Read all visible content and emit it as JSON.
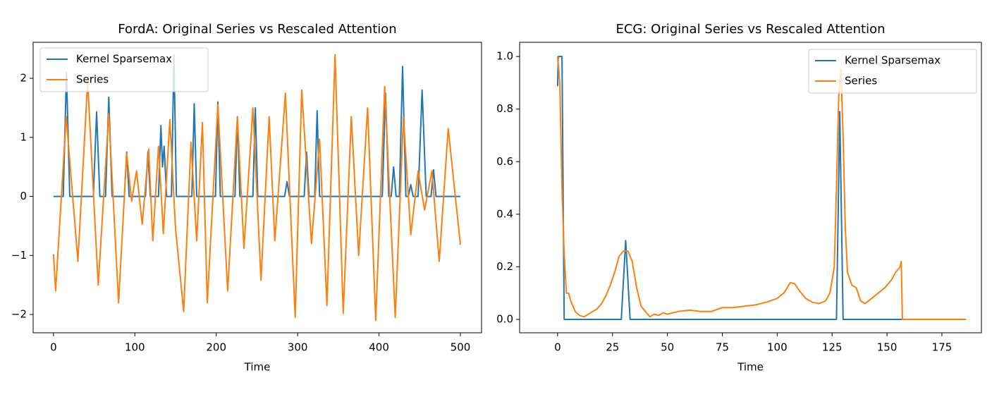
{
  "chart_data": [
    {
      "type": "line",
      "title": "FordA: Original Series vs Rescaled Attention",
      "xlabel": "Time",
      "xlim": [
        -25,
        526
      ],
      "ylim": [
        -2.31,
        2.61
      ],
      "xticks": [
        0,
        100,
        200,
        300,
        400,
        500
      ],
      "yticks": [
        {
          "value": -2,
          "label": "−2"
        },
        {
          "value": -1,
          "label": "−1"
        },
        0,
        1,
        2
      ],
      "legend": "upper-left",
      "series": [
        {
          "name": "Kernel Sparsemax",
          "color": "#1f77b4",
          "x": [
            0,
            12,
            16,
            20,
            49,
            53,
            57,
            64,
            68,
            72,
            87,
            90,
            93,
            113,
            116,
            119,
            129,
            132,
            134,
            136,
            139,
            145,
            148,
            151,
            170,
            173,
            176,
            199,
            202,
            205,
            223,
            226,
            229,
            245,
            248,
            251,
            284,
            287,
            290,
            308,
            311,
            314,
            321,
            324,
            327,
            404,
            408,
            412,
            415,
            418,
            421,
            425,
            429,
            433,
            436,
            439,
            442,
            448,
            453,
            458,
            464,
            467,
            470,
            500
          ],
          "values": [
            0,
            0,
            2.1,
            0,
            0,
            1.43,
            0,
            0,
            1.68,
            0,
            0,
            0.75,
            0,
            0,
            0.75,
            0,
            0,
            1.2,
            0.5,
            0.85,
            0,
            0,
            2.4,
            0,
            0,
            1.57,
            0,
            0,
            1.6,
            0,
            0,
            1.35,
            0,
            0,
            1.5,
            0,
            0,
            0.25,
            0,
            0,
            0.75,
            0,
            0,
            1.45,
            0,
            0,
            1.75,
            0,
            0,
            0.5,
            0,
            0,
            2.2,
            0,
            0,
            0.2,
            0,
            0,
            1.8,
            0,
            0,
            0.45,
            0,
            0
          ]
        },
        {
          "name": "Series",
          "color": "#ff7f0e",
          "x": [
            0,
            2.6,
            15.6,
            30,
            42,
            55,
            68,
            80,
            90,
            96,
            102,
            109,
            117,
            122,
            129,
            135,
            143,
            150,
            160,
            169,
            176,
            183,
            189,
            202,
            214,
            226,
            234,
            245,
            255,
            265,
            272,
            285,
            297,
            305,
            317,
            327,
            336,
            346,
            356,
            366,
            375,
            386,
            396,
            407,
            420,
            430,
            439,
            448,
            456,
            465,
            474,
            485,
            500
          ],
          "values": [
            -0.98,
            -1.6,
            1.35,
            -1.1,
            1.95,
            -1.5,
            1.4,
            -1.8,
            0.73,
            -0.08,
            0.43,
            -0.47,
            0.8,
            -0.75,
            0.85,
            -0.63,
            1.3,
            -0.55,
            -1.95,
            0.92,
            -0.75,
            1.25,
            -1.8,
            1.55,
            -1.6,
            1.35,
            -0.88,
            1.5,
            -1.42,
            1.35,
            -0.75,
            1.75,
            -2.05,
            1.8,
            -0.8,
            0.97,
            -1.85,
            2.4,
            -1.98,
            1.35,
            -1.0,
            1.5,
            -2.1,
            1.86,
            -2.05,
            1.35,
            -0.65,
            0.43,
            -0.23,
            0.43,
            -1.1,
            1.15,
            -0.82
          ]
        }
      ]
    },
    {
      "type": "line",
      "title": "ECG: Original Series vs Rescaled Attention",
      "xlabel": "Time",
      "xlim": [
        -17.3,
        193
      ],
      "ylim": [
        -0.051,
        1.054
      ],
      "xticks": [
        0,
        25,
        50,
        75,
        100,
        125,
        150,
        175
      ],
      "yticks": [
        {
          "value": 0,
          "label": "0.0"
        },
        0.2,
        0.4,
        0.6,
        0.8,
        {
          "value": 1,
          "label": "1.0"
        }
      ],
      "legend": "upper-right",
      "series": [
        {
          "name": "Kernel Sparsemax",
          "color": "#1f77b4",
          "x": [
            0,
            0.3,
            2,
            3,
            29,
            31,
            33,
            127,
            128.5,
            130,
            186
          ],
          "values": [
            0.887,
            1.0,
            1.0,
            0,
            0,
            0.3,
            0,
            0,
            0.79,
            0,
            0
          ]
        },
        {
          "name": "Series",
          "color": "#ff7f0e",
          "x": [
            0,
            1,
            2,
            3,
            4,
            5,
            6,
            8,
            10,
            12,
            14,
            16,
            18,
            20,
            22,
            24,
            26,
            28,
            30,
            32,
            34,
            36,
            38,
            40,
            42,
            44,
            46,
            48,
            50,
            55,
            60,
            65,
            70,
            75,
            80,
            85,
            90,
            95,
            100,
            103,
            106,
            108,
            110,
            113,
            116,
            119,
            122,
            124,
            126,
            127,
            128,
            129,
            130,
            131,
            132,
            134,
            136,
            138,
            140,
            143,
            146,
            149,
            152,
            154,
            156,
            156.5,
            157,
            186
          ],
          "values": [
            1.0,
            0.9,
            0.5,
            0.25,
            0.1,
            0.1,
            0.07,
            0.03,
            0.015,
            0.01,
            0.02,
            0.03,
            0.04,
            0.06,
            0.09,
            0.13,
            0.18,
            0.24,
            0.26,
            0.26,
            0.22,
            0.12,
            0.05,
            0.03,
            0.01,
            0.02,
            0.015,
            0.025,
            0.02,
            0.03,
            0.035,
            0.03,
            0.03,
            0.045,
            0.045,
            0.05,
            0.055,
            0.065,
            0.08,
            0.1,
            0.14,
            0.135,
            0.11,
            0.08,
            0.065,
            0.06,
            0.07,
            0.1,
            0.2,
            0.5,
            0.85,
            0.95,
            0.7,
            0.35,
            0.18,
            0.13,
            0.12,
            0.07,
            0.06,
            0.08,
            0.1,
            0.12,
            0.15,
            0.18,
            0.2,
            0.22,
            0,
            0
          ]
        }
      ]
    }
  ]
}
